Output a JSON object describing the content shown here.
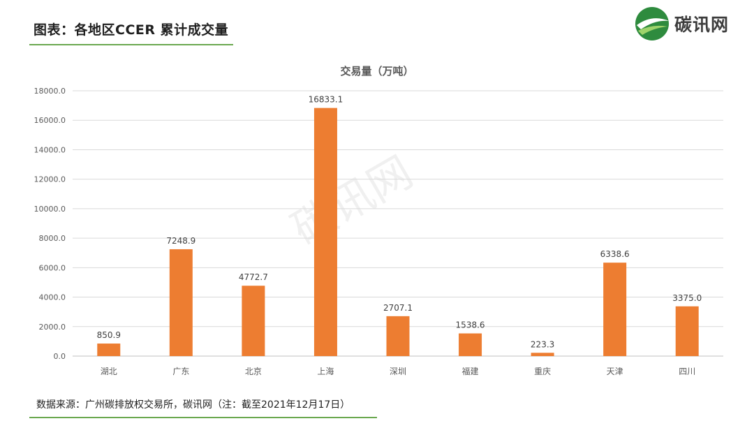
{
  "header": {
    "title": "图表：各地区CCER 累计成交量"
  },
  "logo": {
    "text": "碳讯网",
    "icon": "green-leaf-circle-icon",
    "accent": "#2e8b3e"
  },
  "watermark": {
    "text": "碳讯网"
  },
  "colors": {
    "bar": "#ed7d31",
    "grid": "#d9d9d9",
    "rule": "#6aa84f"
  },
  "chart_data": {
    "type": "bar",
    "title": "交易量（万吨）",
    "categories": [
      "湖北",
      "广东",
      "北京",
      "上海",
      "深圳",
      "福建",
      "重庆",
      "天津",
      "四川"
    ],
    "values": [
      850.9,
      7248.9,
      4772.7,
      16833.1,
      2707.1,
      1538.6,
      223.3,
      6338.6,
      3375.0
    ],
    "data_labels": [
      "850.9",
      "7248.9",
      "4772.7",
      "16833.1",
      "2707.1",
      "1538.6",
      "223.3",
      "6338.6",
      "3375.0"
    ],
    "ylim": [
      0,
      18000
    ],
    "yticks": [
      0,
      2000,
      4000,
      6000,
      8000,
      10000,
      12000,
      14000,
      16000,
      18000
    ],
    "ytick_labels": [
      "0.0",
      "2000.0",
      "4000.0",
      "6000.0",
      "8000.0",
      "10000.0",
      "12000.0",
      "14000.0",
      "16000.0",
      "18000.0"
    ],
    "grid": true,
    "legend": "none"
  },
  "footer": {
    "source": "数据来源：广州碳排放权交易所，碳讯网（注：截至2021年12月17日）"
  }
}
